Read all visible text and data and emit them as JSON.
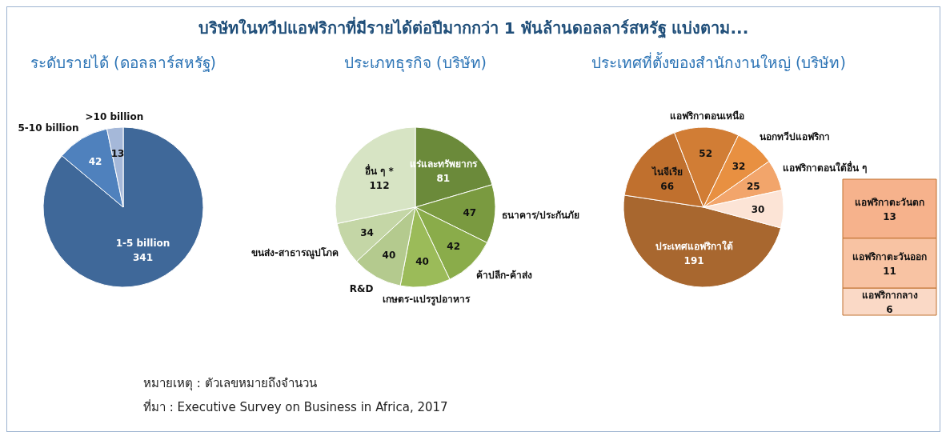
{
  "chart_data": [
    {
      "type": "other",
      "title": "บริษัทในทวีปแอฟริกาที่มีรายได้ต่อปีมากกว่า 1 พันล้านดอลลาร์สหรัฐ แบ่งตาม...",
      "annotations": [
        "หมายเหตุ : ตัวเลขหมายถึงจำนวน",
        "ที่มา : Executive Survey on Business in Africa, 2017"
      ]
    },
    {
      "type": "pie",
      "title": "ระดับรายได้ (ดอลลาร์สหรัฐ)",
      "categories": [
        "1-5 billion",
        "5-10 billion",
        ">10 billion"
      ],
      "values": [
        341,
        42,
        13
      ],
      "colors": [
        "#3f6899",
        "#4f81bd",
        "#a5b8d9"
      ],
      "data_labels": true
    },
    {
      "type": "pie",
      "title": "ประเภทธุรกิจ (บริษัท)",
      "categories": [
        "แร่และทรัพยากร",
        "ธนาคาร/ประกันภัย",
        "ค้าปลีก-ค้าส่ง",
        "เกษตร-แปรรูปอาหาร",
        "R&D",
        "ขนส่ง-สาธารณูปโภค",
        "อื่น ๆ *"
      ],
      "values": [
        81,
        47,
        42,
        40,
        40,
        34,
        112
      ],
      "colors": [
        "#6b8a3a",
        "#7a9a40",
        "#8aac4a",
        "#9bbb59",
        "#b4ca8e",
        "#c4d6a6",
        "#d7e4c4"
      ],
      "data_labels": true
    },
    {
      "type": "pie",
      "title": "ประเทศที่ตั้งของสำนักงานใหญ่ (บริษัท)",
      "categories": [
        "ประเทศแอฟริกาใต้",
        "ไนจีเรีย",
        "แอฟริกาตอนเหนือ",
        "นอกทวีปแอฟริกา",
        "แอฟริกาตอนใต้อื่น ๆ",
        null
      ],
      "values": [
        191,
        66,
        52,
        32,
        25,
        30
      ],
      "colors": [
        "#a8672f",
        "#c0702e",
        "#d17d35",
        "#e89041",
        "#f2a56b",
        "#fce4d6"
      ],
      "data_labels": true
    },
    {
      "type": "bar",
      "stacked": true,
      "categories": [
        null
      ],
      "data_labels": true,
      "series": [
        {
          "name": "แอฟริกากลาง",
          "color": "#fad9c6",
          "values": [
            6
          ]
        },
        {
          "name": "แอฟริกาตะวันออก",
          "color": "#f8c3a3",
          "values": [
            11
          ]
        },
        {
          "name": "แอฟริกาตะวันตก",
          "color": "#f6b28c",
          "values": [
            13
          ]
        }
      ]
    }
  ]
}
